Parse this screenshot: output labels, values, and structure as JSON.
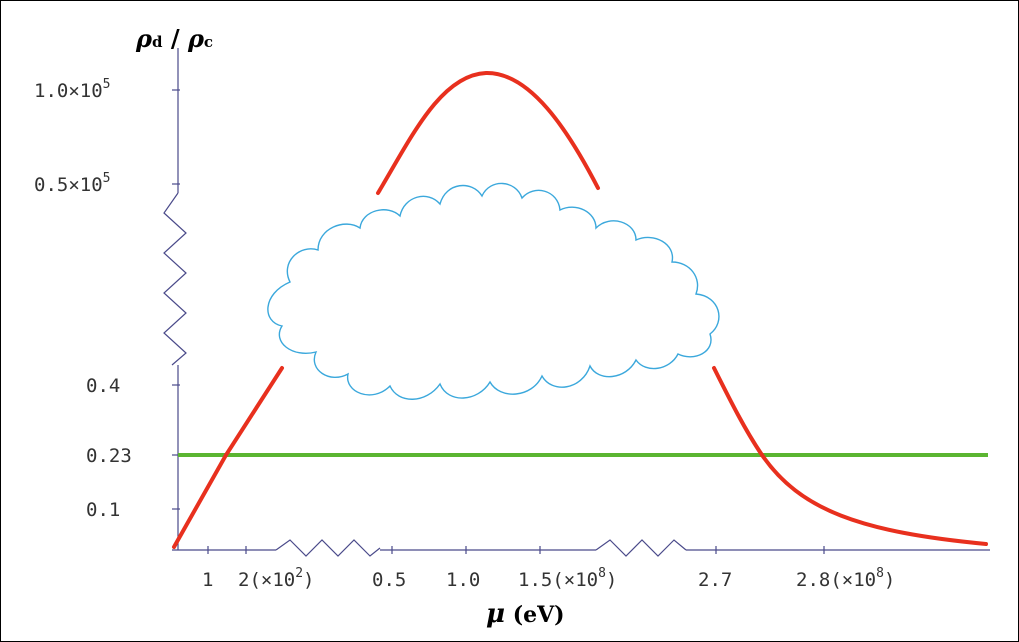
{
  "chart_data": {
    "type": "line",
    "title": "",
    "ylabel": {
      "main": "ρ",
      "sub1": "d",
      "sep": " / ",
      "main2": "ρ",
      "sub2": "c"
    },
    "xlabel": {
      "mu": "μ",
      "unit": " (eV)"
    },
    "y_ticks": [
      "1.0×10",
      "0.5×10",
      "0.4",
      "0.23",
      "0.1"
    ],
    "y_tick_exp": "5",
    "x_tick_labels": [
      "1",
      "2(×10",
      "0.5",
      "1.0",
      "1.5(×10",
      "2.7",
      "2.8(×10"
    ],
    "x_tick_exp": [
      "2",
      "8",
      "8"
    ],
    "x_tick_close": ")",
    "axis_breaks": [
      "y-axis zigzag between 0.4 and 0.5×10^5",
      "x-axis zigzag between 2×10^2 and 0.5×10^8",
      "x-axis zigzag between 1.5×10^8 and 2.7×10^8"
    ],
    "series": [
      {
        "color": "#e8301e",
        "description_segments": [
          {
            "x": [
              0.7,
              1,
              1.3,
              1.6,
              1.9,
              2.0
            ],
            "y": [
              0.0,
              0.08,
              0.17,
              0.26,
              0.35,
              0.38
            ]
          },
          {
            "x": [
              0.45,
              0.6,
              0.8,
              1.0,
              1.2,
              1.4,
              1.55
            ],
            "y": [
              48000,
              70000,
              92000,
              103000,
              98000,
              78000,
              50000
            ]
          },
          {
            "x": [
              2.7,
              2.72,
              2.75,
              2.8,
              2.85,
              2.9,
              2.95
            ],
            "y": [
              0.38,
              0.28,
              0.2,
              0.1,
              0.05,
              0.025,
              0.01
            ]
          }
        ]
      },
      {
        "color": "#5bb531",
        "constant_y": 0.23
      }
    ],
    "annotations": [
      "cloud shape obscuring middle region"
    ],
    "colors": {
      "curve": "#e8301e",
      "threshold": "#5bb531",
      "axis": "#4a4a8a",
      "cloud": "#3ba8dc"
    }
  }
}
